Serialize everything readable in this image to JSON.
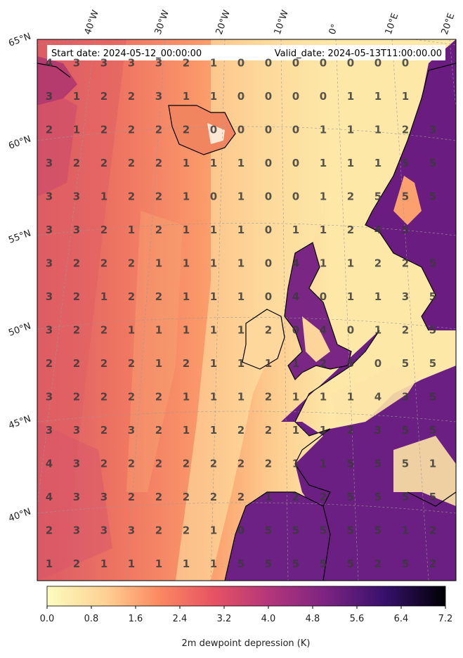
{
  "header": {
    "start_label": "Start date: 2024-05-12_00:00:00",
    "valid_label": "Valid_date: 2024-05-13T11:00:00.00"
  },
  "map": {
    "lon_labels": [
      "40°W",
      "30°W",
      "20°W",
      "10°W",
      "0°",
      "10°E",
      "20°E"
    ],
    "lat_labels": [
      "65°N",
      "60°N",
      "55°N",
      "50°N",
      "45°N",
      "40°N"
    ]
  },
  "colorbar": {
    "ticks": [
      "0.0",
      "0.8",
      "1.6",
      "2.4",
      "3.2",
      "4.0",
      "4.8",
      "5.6",
      "6.4",
      "7.2"
    ],
    "label": "2m dewpoint depression (K)",
    "vmin": 0.0,
    "vmax": 7.2
  },
  "grid_values": [
    [
      "4",
      "3",
      "3",
      "3",
      "3",
      "2",
      "1",
      "0",
      "0",
      "0",
      "0",
      "0",
      "0",
      "0",
      ""
    ],
    [
      "3",
      "1",
      "2",
      "2",
      "3",
      "1",
      "1",
      "0",
      "0",
      "0",
      "0",
      "1",
      "1",
      "1",
      ""
    ],
    [
      "2",
      "1",
      "2",
      "2",
      "2",
      "2",
      "0",
      "0",
      "0",
      "0",
      "1",
      "1",
      "1",
      "2",
      "3"
    ],
    [
      "3",
      "2",
      "2",
      "2",
      "2",
      "1",
      "1",
      "1",
      "0",
      "0",
      "1",
      "1",
      "1",
      "5",
      "5"
    ],
    [
      "3",
      "3",
      "1",
      "2",
      "2",
      "1",
      "0",
      "1",
      "0",
      "0",
      "1",
      "2",
      "5",
      "5",
      "5"
    ],
    [
      "3",
      "3",
      "2",
      "1",
      "2",
      "1",
      "1",
      "1",
      "0",
      "1",
      "1",
      "2",
      "4",
      "5",
      ""
    ],
    [
      "3",
      "2",
      "2",
      "2",
      "1",
      "1",
      "1",
      "1",
      "0",
      "4",
      "1",
      "1",
      "2",
      "2",
      "5"
    ],
    [
      "3",
      "2",
      "1",
      "2",
      "2",
      "1",
      "1",
      "1",
      "0",
      "4",
      "0",
      "1",
      "1",
      "3",
      "5"
    ],
    [
      "3",
      "2",
      "2",
      "1",
      "1",
      "1",
      "1",
      "1",
      "2",
      "0",
      "4",
      "0",
      "1",
      "2",
      "5"
    ],
    [
      "2",
      "2",
      "2",
      "2",
      "1",
      "2",
      "1",
      "1",
      "1",
      "1",
      "2",
      "5",
      "0",
      "5",
      "5"
    ],
    [
      "3",
      "2",
      "2",
      "2",
      "2",
      "1",
      "1",
      "1",
      "2",
      "1",
      "1",
      "1",
      "4",
      "3",
      "5"
    ],
    [
      "3",
      "3",
      "2",
      "3",
      "2",
      "1",
      "1",
      "2",
      "2",
      "1",
      "1",
      "2",
      "3",
      "5",
      "5"
    ],
    [
      "4",
      "3",
      "2",
      "2",
      "2",
      "2",
      "2",
      "2",
      "2",
      "1",
      "1",
      "5",
      "5",
      "5",
      "1"
    ],
    [
      "4",
      "3",
      "3",
      "2",
      "2",
      "2",
      "2",
      "2",
      "1",
      "2",
      "2",
      "5",
      "5",
      "5",
      "5"
    ],
    [
      "2",
      "3",
      "3",
      "3",
      "2",
      "2",
      "1",
      "0",
      "5",
      "5",
      "5",
      "5",
      "5",
      "1",
      "2"
    ],
    [
      "1",
      "2",
      "1",
      "1",
      "1",
      "1",
      "1",
      "5",
      "5",
      "5",
      "5",
      "5",
      "2",
      "5",
      "2"
    ]
  ]
}
